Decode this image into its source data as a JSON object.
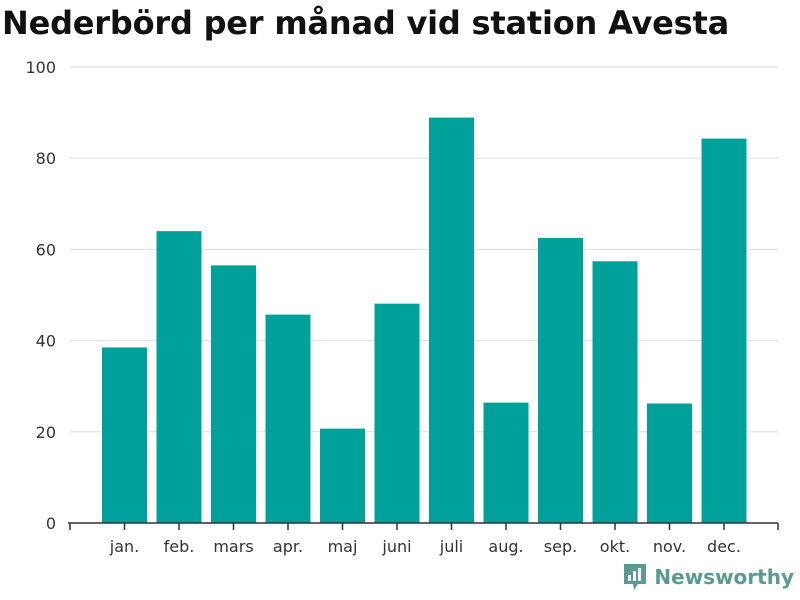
{
  "title": "Nederbörd per månad vid station Avesta",
  "brand": {
    "name": "Newsworthy",
    "color": "#5a9a92",
    "icon": "bar-chart-logo-icon"
  },
  "chart_data": {
    "type": "bar",
    "title": "Nederbörd per månad vid station Avesta",
    "xlabel": "",
    "ylabel": "",
    "categories": [
      "jan.",
      "feb.",
      "mars",
      "apr.",
      "maj",
      "juni",
      "juli",
      "aug.",
      "sep.",
      "okt.",
      "nov.",
      "dec."
    ],
    "values": [
      38.5,
      64,
      56.5,
      45.7,
      20.7,
      48.1,
      88.9,
      26.4,
      62.5,
      57.4,
      26.2,
      84.3
    ],
    "ylim": [
      0,
      100
    ],
    "yticks": [
      0,
      20,
      40,
      60,
      80,
      100
    ],
    "grid": true,
    "legend": "none",
    "bar_color": "#00a19a",
    "grid_color": "#dddddd",
    "axis_color": "#333333"
  }
}
